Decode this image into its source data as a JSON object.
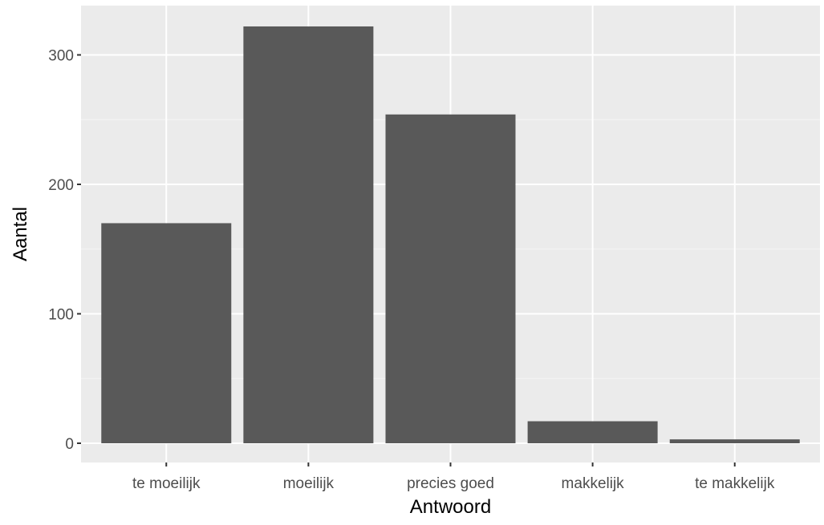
{
  "chart_data": {
    "type": "bar",
    "title": "",
    "xlabel": "Antwoord",
    "ylabel": "Aantal",
    "categories": [
      "te moeilijk",
      "moeilijk",
      "precies goed",
      "makkelijk",
      "te makkelijk"
    ],
    "values": [
      170,
      322,
      254,
      17,
      3
    ],
    "ylim": [
      0,
      338
    ],
    "yticks": [
      0,
      100,
      200,
      300
    ],
    "yticks_labels": [
      "0",
      "100",
      "200",
      "300"
    ],
    "grid": true,
    "legend": "none",
    "colors": {
      "bar": "#595959",
      "panel_background": "#ebebeb",
      "grid_major": "#ffffff",
      "grid_minor": "#f5f5f5",
      "tick_text": "#4d4d4d",
      "axis_title": "#000000"
    }
  }
}
